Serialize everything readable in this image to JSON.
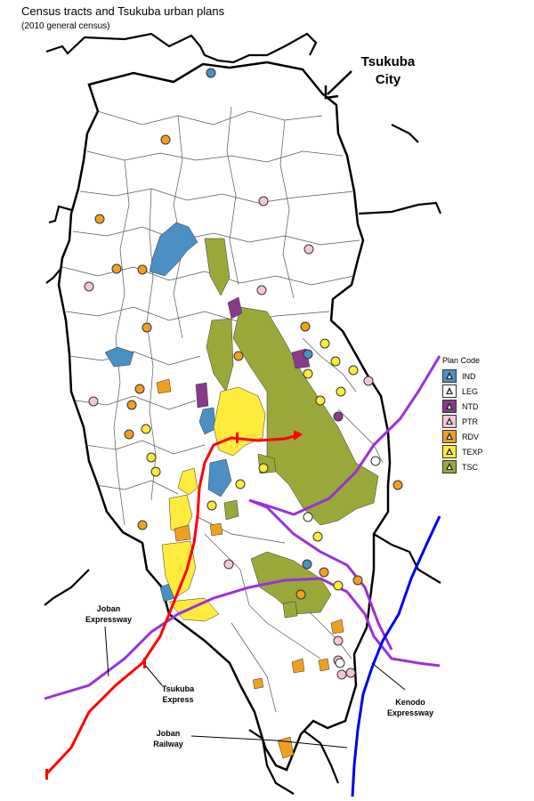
{
  "title": "Census tracts and Tsukuba urban plans",
  "subtitle": "(2010 general census)",
  "city_label_line1": "Tsukuba",
  "city_label_line2": "City",
  "legend": {
    "title": "Plan Code",
    "items": [
      {
        "code": "IND",
        "color": "#4a90c4"
      },
      {
        "code": "LEG",
        "color": "#ffffff"
      },
      {
        "code": "NTD",
        "color": "#8b3a8b"
      },
      {
        "code": "PTR",
        "color": "#f4c6d8"
      },
      {
        "code": "RDV",
        "color": "#f0a020"
      },
      {
        "code": "TEXP",
        "color": "#ffeb3b"
      },
      {
        "code": "TSC",
        "color": "#9aa83a"
      }
    ]
  },
  "routes": {
    "joban_expressway": {
      "line1": "Joban",
      "line2": "Expressway",
      "color": "#9b30d9"
    },
    "tsukuba_express": {
      "line1": "Tsukuba",
      "line2": "Express",
      "color": "#ff0000"
    },
    "joban_railway": {
      "line1": "Joban",
      "line2": "Railway",
      "color": "#000000"
    },
    "kenodo_expressway": {
      "line1": "Kenodo",
      "line2": "Expressway",
      "color": "#9b30d9"
    },
    "other_rail": {
      "color": "#0000ee"
    }
  }
}
